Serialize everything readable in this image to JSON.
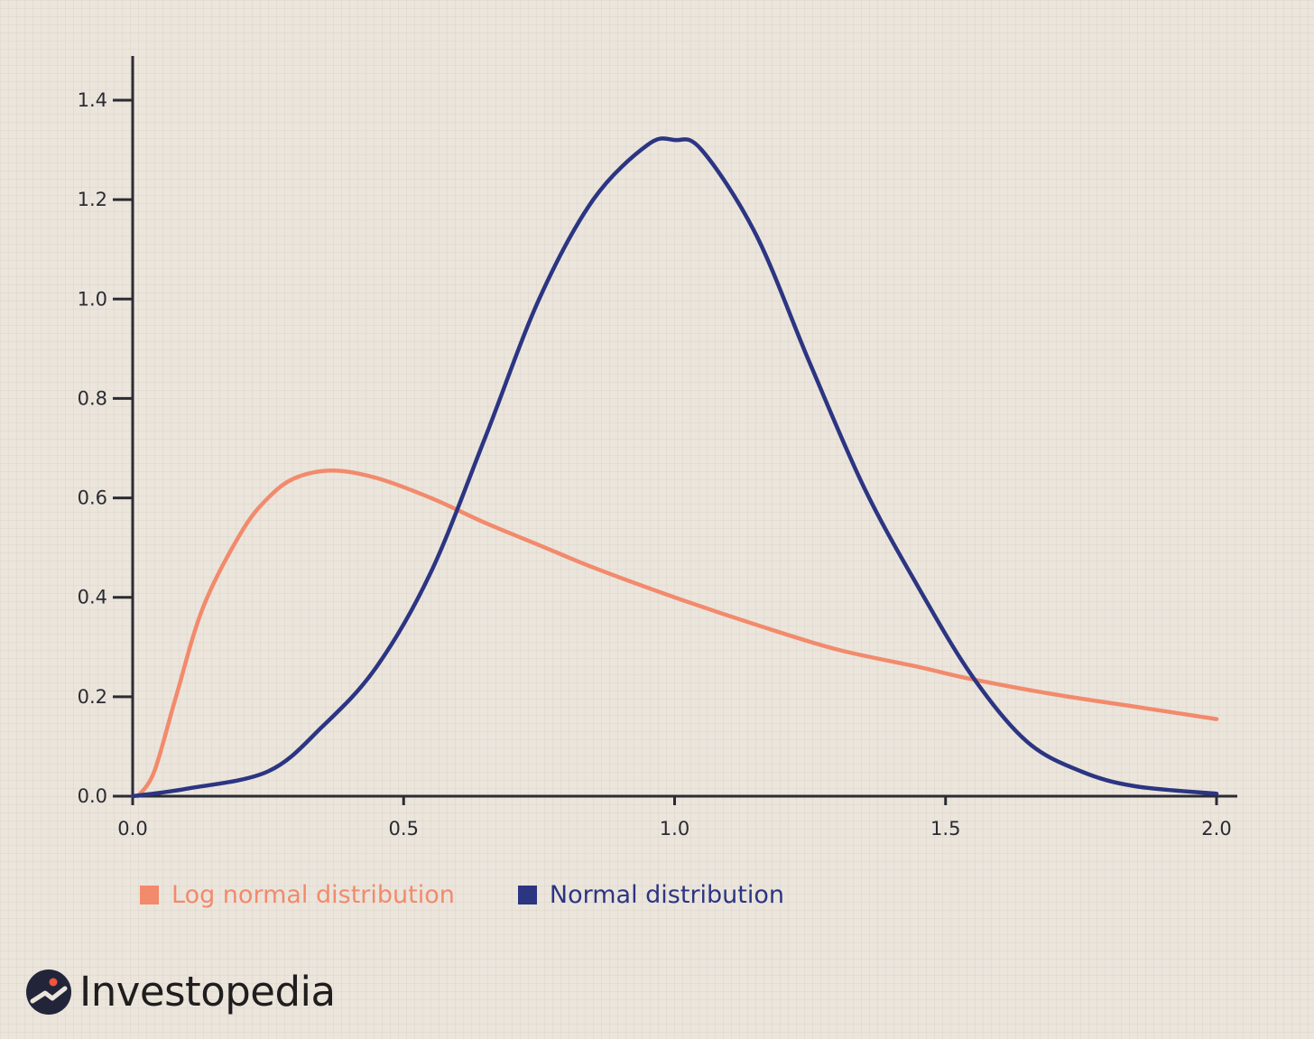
{
  "chart_data": {
    "type": "line",
    "title": "",
    "xlabel": "",
    "ylabel": "",
    "xlim": [
      0,
      2
    ],
    "ylim": [
      0,
      1.4
    ],
    "x_ticks": [
      "0.0",
      "0.5",
      "1.0",
      "1.5",
      "2.0"
    ],
    "y_ticks": [
      "0.0",
      "0.2",
      "0.4",
      "0.6",
      "0.8",
      "1.0",
      "1.2",
      "1.4"
    ],
    "grid": false,
    "legend_position": "bottom-left",
    "series": [
      {
        "name": "Log normal distribution",
        "color": "#f28a6c",
        "x": [
          0.01,
          0.04,
          0.08,
          0.13,
          0.2,
          0.25,
          0.3,
          0.37,
          0.45,
          0.55,
          0.65,
          0.75,
          0.85,
          1.0,
          1.15,
          1.3,
          1.45,
          1.55,
          1.7,
          1.85,
          2.0
        ],
        "y": [
          0.0,
          0.05,
          0.2,
          0.38,
          0.53,
          0.6,
          0.64,
          0.655,
          0.64,
          0.6,
          0.55,
          0.505,
          0.46,
          0.4,
          0.345,
          0.295,
          0.26,
          0.235,
          0.205,
          0.18,
          0.155
        ]
      },
      {
        "name": "Normal distribution",
        "color": "#2c3582",
        "x": [
          0.0,
          0.1,
          0.25,
          0.35,
          0.45,
          0.55,
          0.65,
          0.75,
          0.85,
          0.95,
          1.0,
          1.05,
          1.15,
          1.25,
          1.35,
          1.45,
          1.55,
          1.65,
          1.75,
          1.85,
          2.0
        ],
        "y": [
          0.0,
          0.015,
          0.05,
          0.14,
          0.26,
          0.45,
          0.72,
          1.0,
          1.2,
          1.31,
          1.32,
          1.3,
          1.13,
          0.87,
          0.62,
          0.42,
          0.24,
          0.11,
          0.05,
          0.02,
          0.005
        ]
      }
    ]
  },
  "brand": {
    "name": "Investopedia",
    "icon": "investopedia-logo-icon"
  },
  "colors": {
    "axis": "#2b2b33",
    "background": "#ebe5dc"
  }
}
